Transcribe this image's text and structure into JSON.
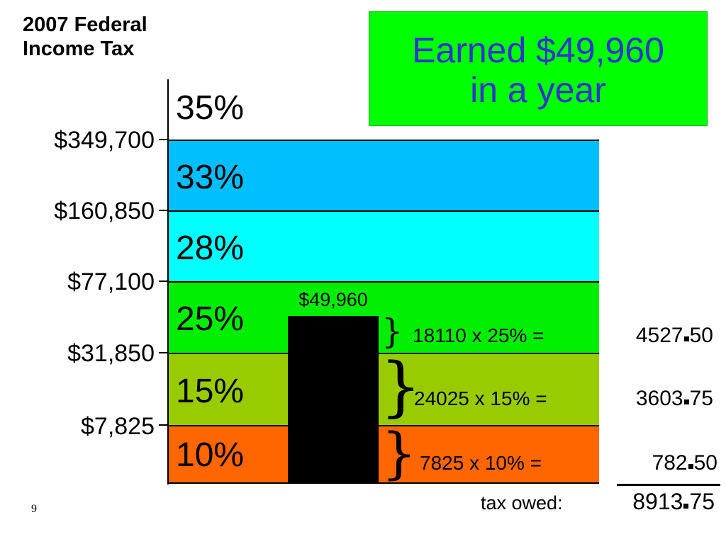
{
  "title_line1": "2007 Federal",
  "title_line2": "Income Tax",
  "earned_line1": "Earned $49,960",
  "earned_line2": "in a year",
  "colors": {
    "band_33": "#00bfff",
    "band_28": "#00ffff",
    "band_25": "#00ee00",
    "band_15": "#99cc00",
    "band_10": "#ff6600",
    "earned_bg": "#00ff00",
    "earned_text": "#3333cc"
  },
  "rates": [
    "35%",
    "33%",
    "28%",
    "25%",
    "15%",
    "10%"
  ],
  "thresholds": [
    "$349,700",
    "$160,850",
    "$77,100",
    "$31,850",
    "$7,825"
  ],
  "bar_label": "$49,960",
  "calculations": [
    {
      "expr": "18110 x 25% =",
      "whole": "4527",
      "cents": "50"
    },
    {
      "expr": "24025 x 15% =",
      "whole": "3603",
      "cents": "75"
    },
    {
      "expr": "7825 x 10% =",
      "whole": "782",
      "cents": "50"
    }
  ],
  "total_label": "tax owed:",
  "total_whole": "8913",
  "total_cents": "75",
  "page_number": "9"
}
